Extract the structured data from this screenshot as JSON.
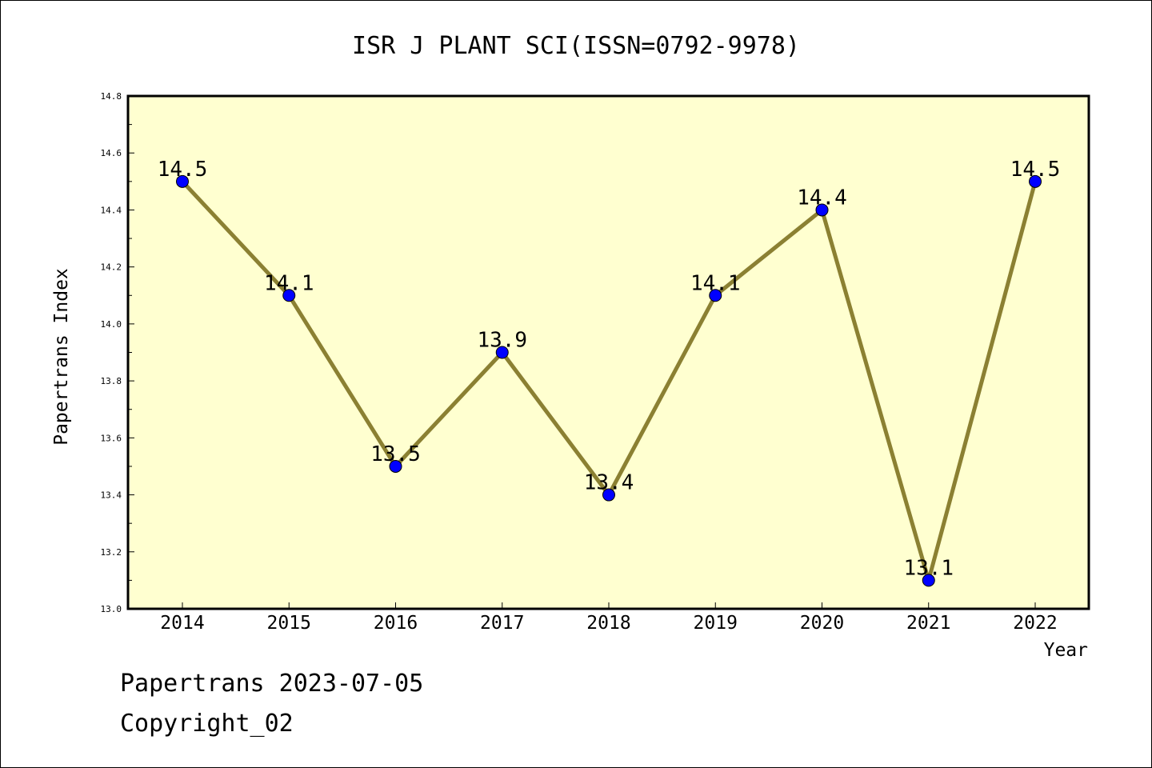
{
  "footer": {
    "line1": "Papertrans 2023-07-05",
    "line2": "Copyright_02"
  },
  "chart_data": {
    "type": "line",
    "title": "ISR J PLANT SCI(ISSN=0792-9978)",
    "xlabel": "Year",
    "ylabel": "Papertrans Index",
    "categories": [
      "2014",
      "2015",
      "2016",
      "2017",
      "2018",
      "2019",
      "2020",
      "2021",
      "2022"
    ],
    "values": [
      14.5,
      14.1,
      13.5,
      13.9,
      13.4,
      14.1,
      14.4,
      13.1,
      14.5
    ],
    "data_labels": [
      "14.5",
      "14.1",
      "13.5",
      "13.9",
      "13.4",
      "14.1",
      "14.4",
      "13.1",
      "14.5"
    ],
    "ylim": [
      13.0,
      14.8
    ],
    "yticks": [
      "13.0",
      "13.2",
      "13.4",
      "13.6",
      "13.8",
      "14.0",
      "14.2",
      "14.4",
      "14.6",
      "14.8"
    ],
    "grid": false,
    "colors": {
      "plot_background": "#ffffd0",
      "line": "#8b8032",
      "marker": "#0000ff"
    }
  }
}
